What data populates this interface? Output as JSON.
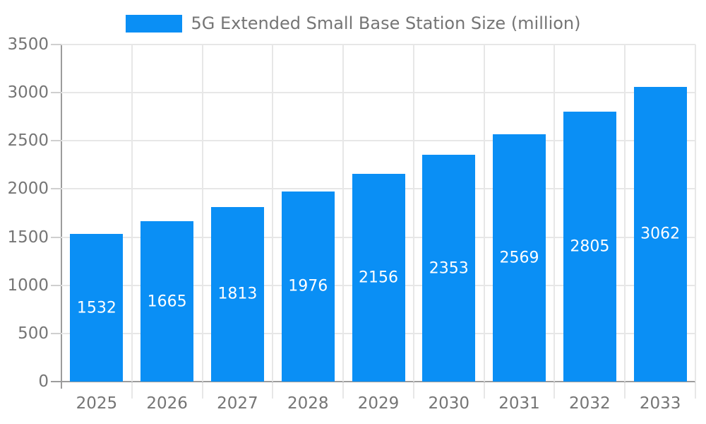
{
  "chart_data": {
    "type": "bar",
    "title": "5G Extended Small Base Station Size (million)",
    "legend": {
      "position": "top",
      "entries": [
        {
          "label": "5G Extended Small Base Station Size (million)",
          "swatch": "legend-swatch"
        }
      ]
    },
    "categories": [
      "2025",
      "2026",
      "2027",
      "2028",
      "2029",
      "2030",
      "2031",
      "2032",
      "2033"
    ],
    "series": [
      {
        "name": "5G Extended Small Base Station Size (million)",
        "values": [
          1532,
          1665,
          1813,
          1976,
          2156,
          2353,
          2569,
          2805,
          3062
        ]
      }
    ],
    "value_labels_shown": true,
    "xlabel": "",
    "ylabel": "",
    "ylim": [
      0,
      3500
    ],
    "yticks": [
      0,
      500,
      1000,
      1500,
      2000,
      2500,
      3000,
      3500
    ],
    "grid": true,
    "colors": {
      "bar": "#0a8ff5",
      "grid": "#e7e7e7",
      "axis": "#9c9c9c",
      "tick": "#cfcfcf",
      "text": "#757575",
      "value_label": "#ffffff"
    }
  }
}
